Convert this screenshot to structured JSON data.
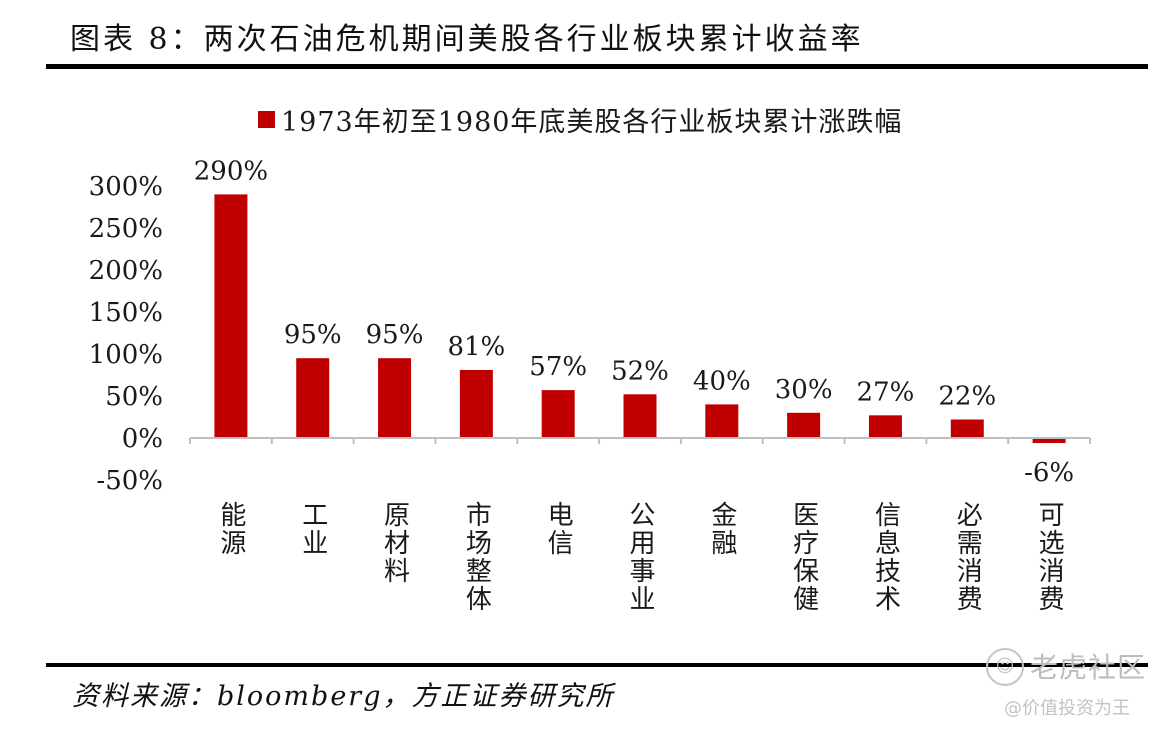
{
  "figure": {
    "title": "图表 8：两次石油危机期间美股各行业板块累计收益率",
    "source": "资料来源：bloomberg，方正证券研究所"
  },
  "watermark": {
    "logo_glyph": "☺",
    "name": "老虎社区",
    "handle": "@价值投资为王"
  },
  "chart_data": {
    "type": "bar",
    "title": "",
    "legend": "1973年初至1980年底美股各行业板块累计涨跌幅",
    "legend_position": "top-center",
    "categories": [
      "能源",
      "工业",
      "原材料",
      "市场整体",
      "电信",
      "公用事业",
      "金融",
      "医疗保健",
      "信息技术",
      "必需消费",
      "可选消费"
    ],
    "values": [
      290,
      95,
      95,
      81,
      57,
      52,
      40,
      30,
      27,
      22,
      -6
    ],
    "data_labels": [
      "290%",
      "95%",
      "95%",
      "81%",
      "57%",
      "52%",
      "40%",
      "30%",
      "27%",
      "22%",
      "-6%"
    ],
    "yticks": [
      300,
      250,
      200,
      150,
      100,
      50,
      0,
      -50
    ],
    "ytick_labels": [
      "300%",
      "250%",
      "200%",
      "150%",
      "100%",
      "50%",
      "0%",
      "-50%"
    ],
    "ylim": [
      -50,
      300
    ],
    "xlabel": "",
    "ylabel": "",
    "grid": false,
    "bar_color": "#c00000"
  }
}
